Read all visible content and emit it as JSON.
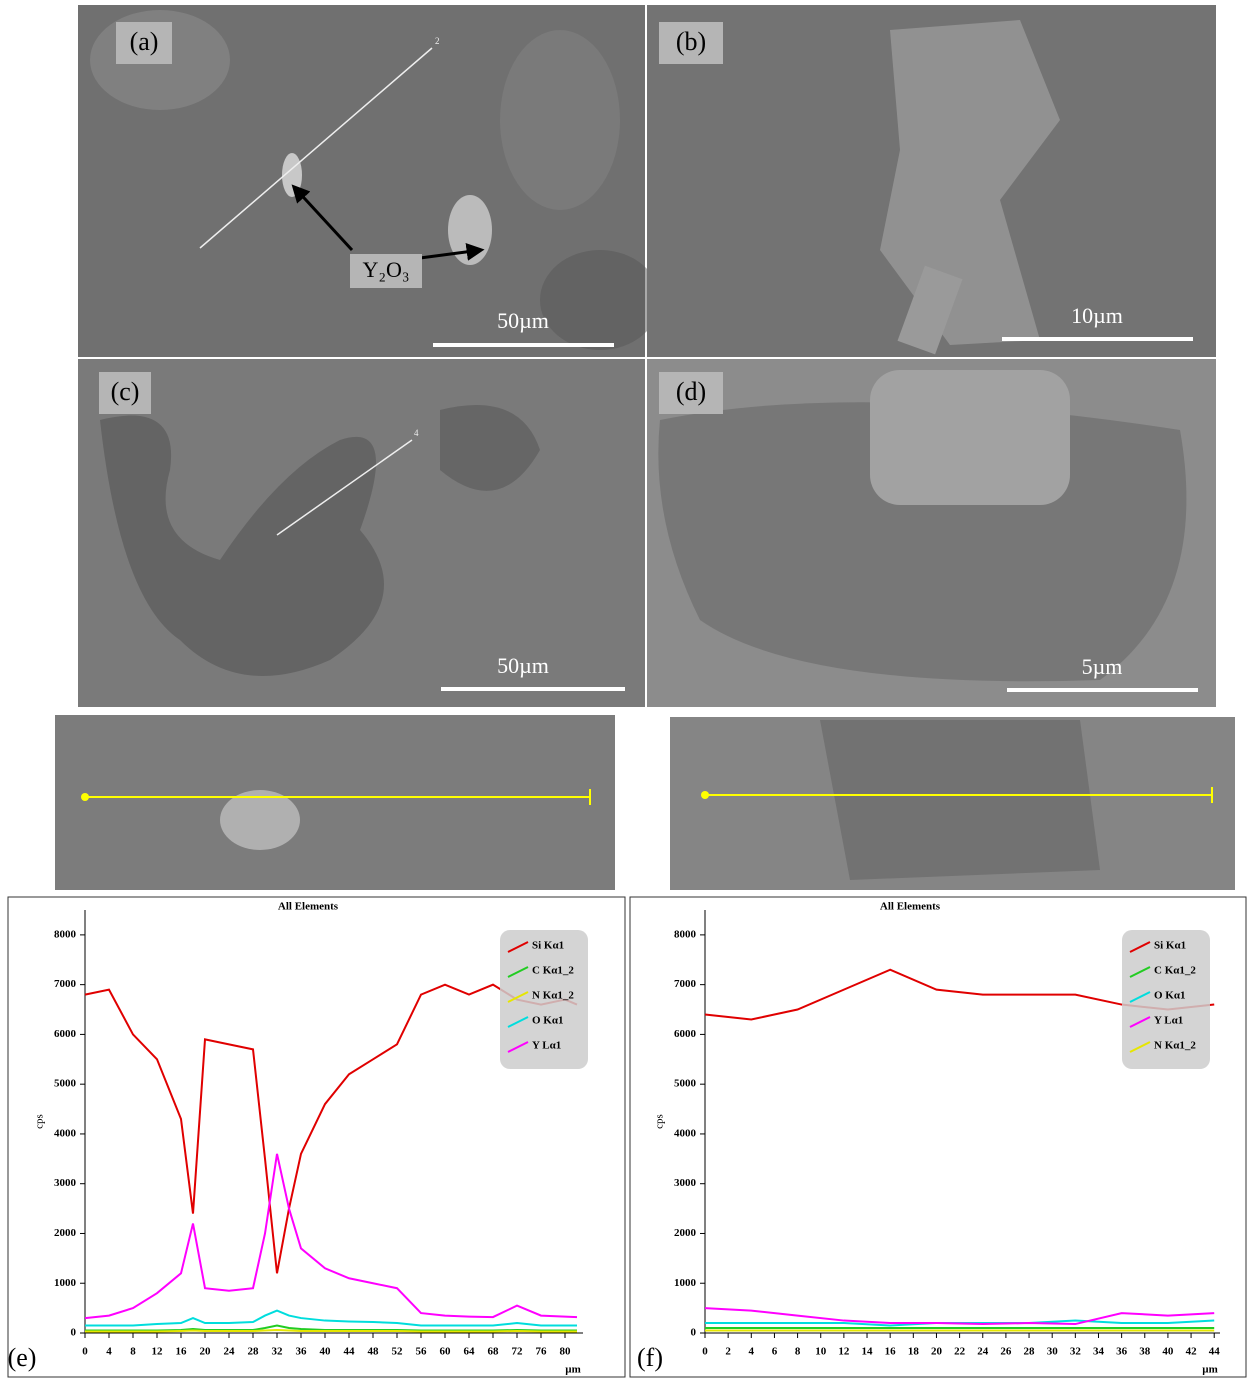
{
  "panels": [
    {
      "label": "(a)",
      "scale": "50µm",
      "annotation": "Y₂O₃",
      "line_label": "2"
    },
    {
      "label": "(b)",
      "scale": "10µm"
    },
    {
      "label": "(c)",
      "scale": "50µm",
      "line_label": "4"
    },
    {
      "label": "(d)",
      "scale": "5µm"
    }
  ],
  "chart_data": [
    {
      "type": "line",
      "panel_label": "(e)",
      "title": "All Elements",
      "ylabel": "cps",
      "xlabel": "µm",
      "x": [
        0,
        4,
        8,
        12,
        16,
        18,
        20,
        24,
        28,
        30,
        32,
        34,
        36,
        40,
        44,
        48,
        52,
        56,
        60,
        64,
        68,
        72,
        76,
        80,
        82
      ],
      "xlim": [
        0,
        83
      ],
      "ylim": [
        0,
        8500
      ],
      "xticks": [
        0,
        4,
        8,
        12,
        16,
        20,
        24,
        28,
        32,
        36,
        40,
        44,
        48,
        52,
        56,
        60,
        64,
        68,
        72,
        76,
        80
      ],
      "yticks": [
        0,
        1000,
        2000,
        3000,
        4000,
        5000,
        6000,
        7000,
        8000
      ],
      "legend": "upper right",
      "series": [
        {
          "name": "Si Kα1",
          "color": "#e00000",
          "values": [
            6800,
            6900,
            6000,
            5500,
            4300,
            2400,
            5900,
            5800,
            5700,
            3500,
            1200,
            2500,
            3600,
            4600,
            5200,
            5500,
            5800,
            6800,
            7000,
            6800,
            7000,
            6700,
            6600,
            6700,
            6600
          ]
        },
        {
          "name": "C Kα1_2",
          "color": "#22cc22",
          "values": [
            50,
            50,
            50,
            50,
            60,
            80,
            60,
            60,
            60,
            100,
            150,
            100,
            80,
            60,
            60,
            60,
            60,
            50,
            50,
            50,
            50,
            60,
            50,
            50,
            50
          ]
        },
        {
          "name": "N Kα1_2",
          "color": "#e6e600",
          "values": [
            30,
            30,
            30,
            30,
            40,
            50,
            40,
            40,
            40,
            50,
            60,
            50,
            40,
            40,
            40,
            40,
            40,
            30,
            30,
            30,
            30,
            40,
            30,
            30,
            30
          ]
        },
        {
          "name": "O Kα1",
          "color": "#00dddd",
          "values": [
            150,
            150,
            150,
            180,
            200,
            300,
            200,
            200,
            220,
            350,
            450,
            350,
            300,
            250,
            230,
            220,
            200,
            150,
            150,
            150,
            150,
            200,
            150,
            150,
            150
          ]
        },
        {
          "name": "Y Lα1",
          "color": "#ff00ff",
          "values": [
            300,
            350,
            500,
            800,
            1200,
            2200,
            900,
            850,
            900,
            2000,
            3600,
            2500,
            1700,
            1300,
            1100,
            1000,
            900,
            400,
            350,
            330,
            320,
            550,
            350,
            330,
            320
          ]
        }
      ]
    },
    {
      "type": "line",
      "panel_label": "(f)",
      "title": "All Elements",
      "ylabel": "cps",
      "xlabel": "µm",
      "x": [
        0,
        4,
        8,
        12,
        16,
        20,
        24,
        28,
        32,
        36,
        40,
        44
      ],
      "xlim": [
        0,
        44.5
      ],
      "ylim": [
        0,
        8500
      ],
      "xticks": [
        0,
        2,
        4,
        6,
        8,
        10,
        12,
        14,
        16,
        18,
        20,
        22,
        24,
        26,
        28,
        30,
        32,
        34,
        36,
        38,
        40,
        42,
        44
      ],
      "yticks": [
        0,
        1000,
        2000,
        3000,
        4000,
        5000,
        6000,
        7000,
        8000
      ],
      "legend": "upper right",
      "series": [
        {
          "name": "Si Kα1",
          "color": "#e00000",
          "values": [
            6400,
            6300,
            6500,
            6900,
            7300,
            6900,
            6800,
            6800,
            6800,
            6600,
            6500,
            6600
          ]
        },
        {
          "name": "C Kα1_2",
          "color": "#22cc22",
          "values": [
            100,
            100,
            100,
            100,
            100,
            100,
            100,
            100,
            100,
            100,
            100,
            100
          ]
        },
        {
          "name": "O Kα1",
          "color": "#00dddd",
          "values": [
            200,
            200,
            200,
            200,
            150,
            200,
            200,
            200,
            250,
            200,
            200,
            250
          ]
        },
        {
          "name": "Y Lα1",
          "color": "#ff00ff",
          "values": [
            500,
            450,
            350,
            250,
            200,
            200,
            180,
            200,
            180,
            400,
            350,
            400
          ]
        },
        {
          "name": "N Kα1_2",
          "color": "#e6e600",
          "values": [
            50,
            50,
            50,
            50,
            50,
            50,
            50,
            50,
            50,
            50,
            50,
            50
          ]
        }
      ]
    }
  ]
}
